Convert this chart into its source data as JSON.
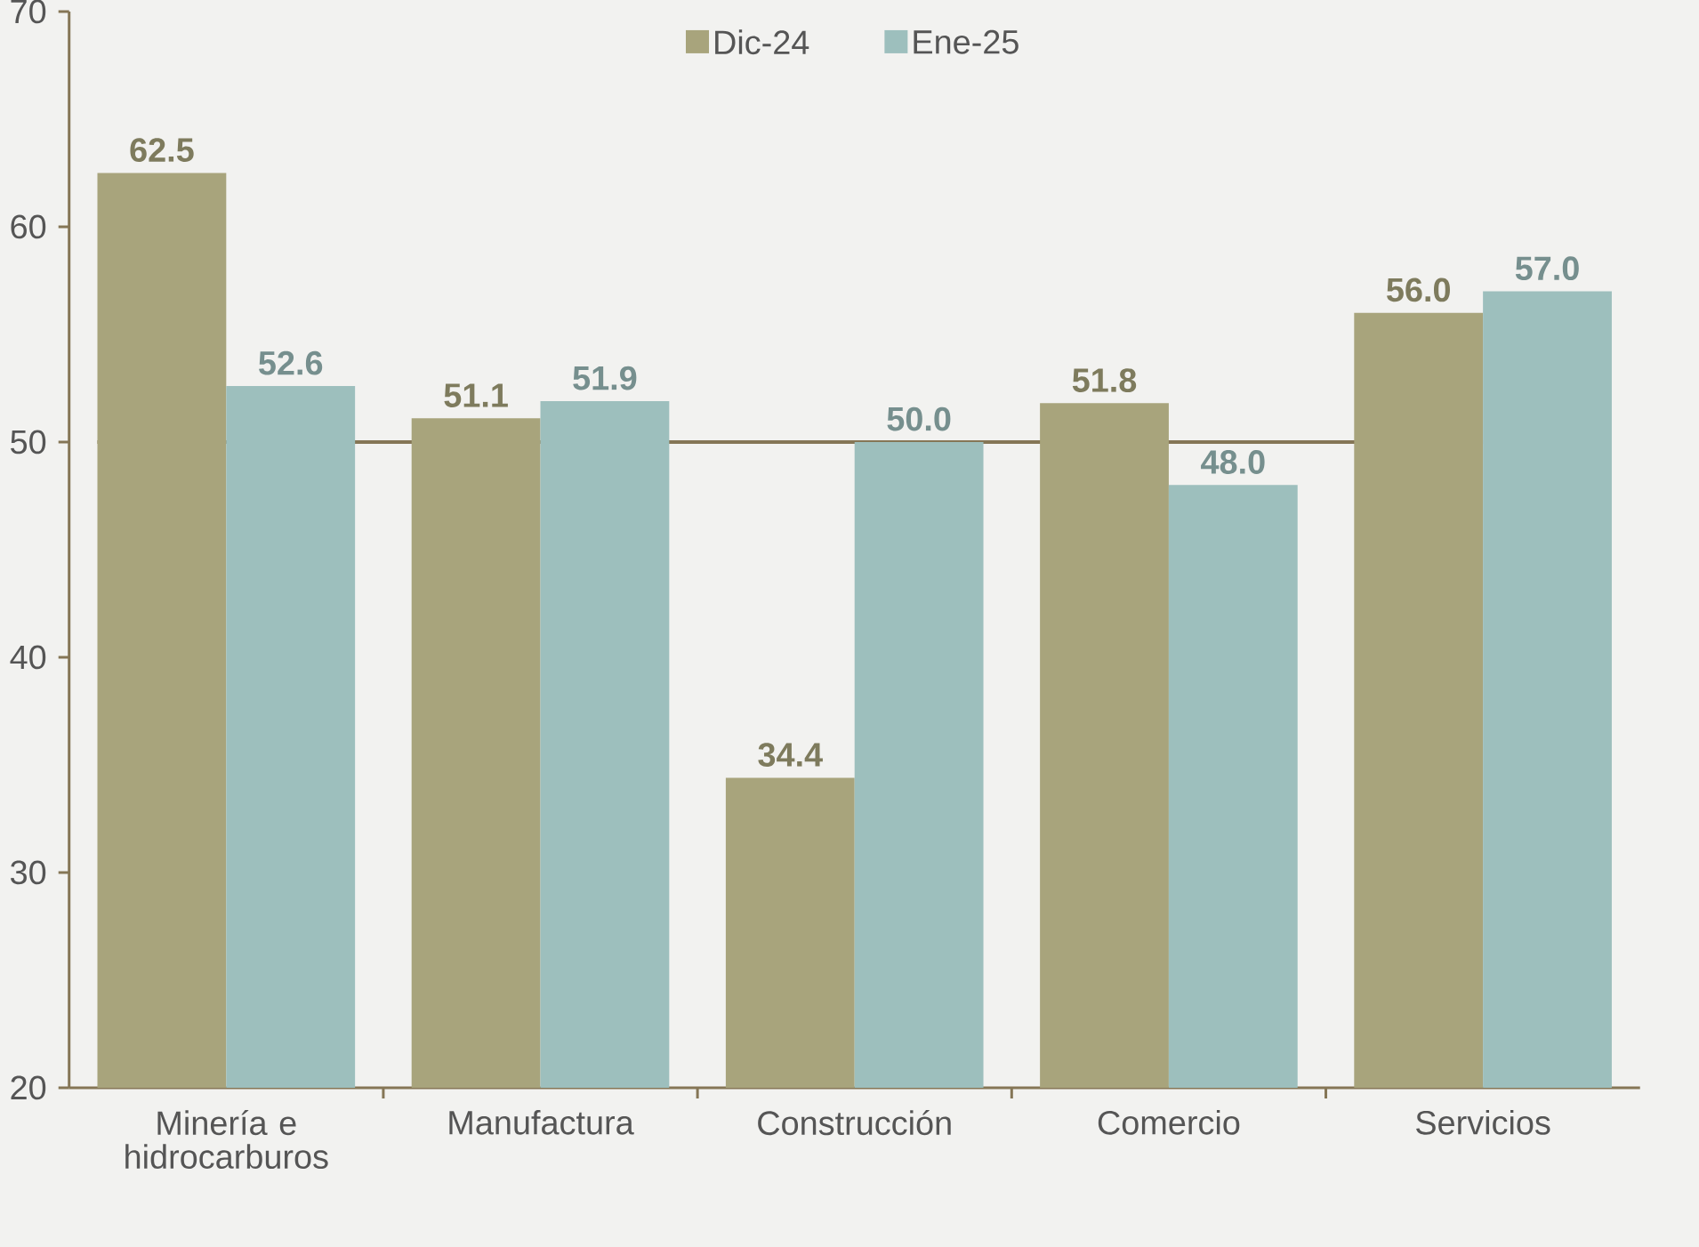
{
  "chart_data": {
    "type": "bar",
    "categories": [
      "Minería e hidrocarburos",
      "Manufactura",
      "Construcción",
      "Comercio",
      "Servicios"
    ],
    "series": [
      {
        "name": "Dic-24",
        "color": "#a8a47c",
        "values": [
          62.5,
          51.1,
          34.4,
          51.8,
          56.0
        ],
        "value_labels": [
          "62.5",
          "51.1",
          "34.4",
          "51.8",
          "56.0"
        ]
      },
      {
        "name": "Ene-25",
        "color": "#9dbfbd",
        "values": [
          52.6,
          51.9,
          50.0,
          48.0,
          57.0
        ],
        "value_labels": [
          "52.6",
          "51.9",
          "50.0",
          "48.0",
          "57.0"
        ]
      }
    ],
    "ylim": [
      20,
      70
    ],
    "yticks": [
      20,
      30,
      40,
      50,
      60,
      70
    ],
    "ref_lines": [
      {
        "axis": "y",
        "value": 50,
        "color": "#857656"
      }
    ],
    "grid": false,
    "legend": "top"
  }
}
